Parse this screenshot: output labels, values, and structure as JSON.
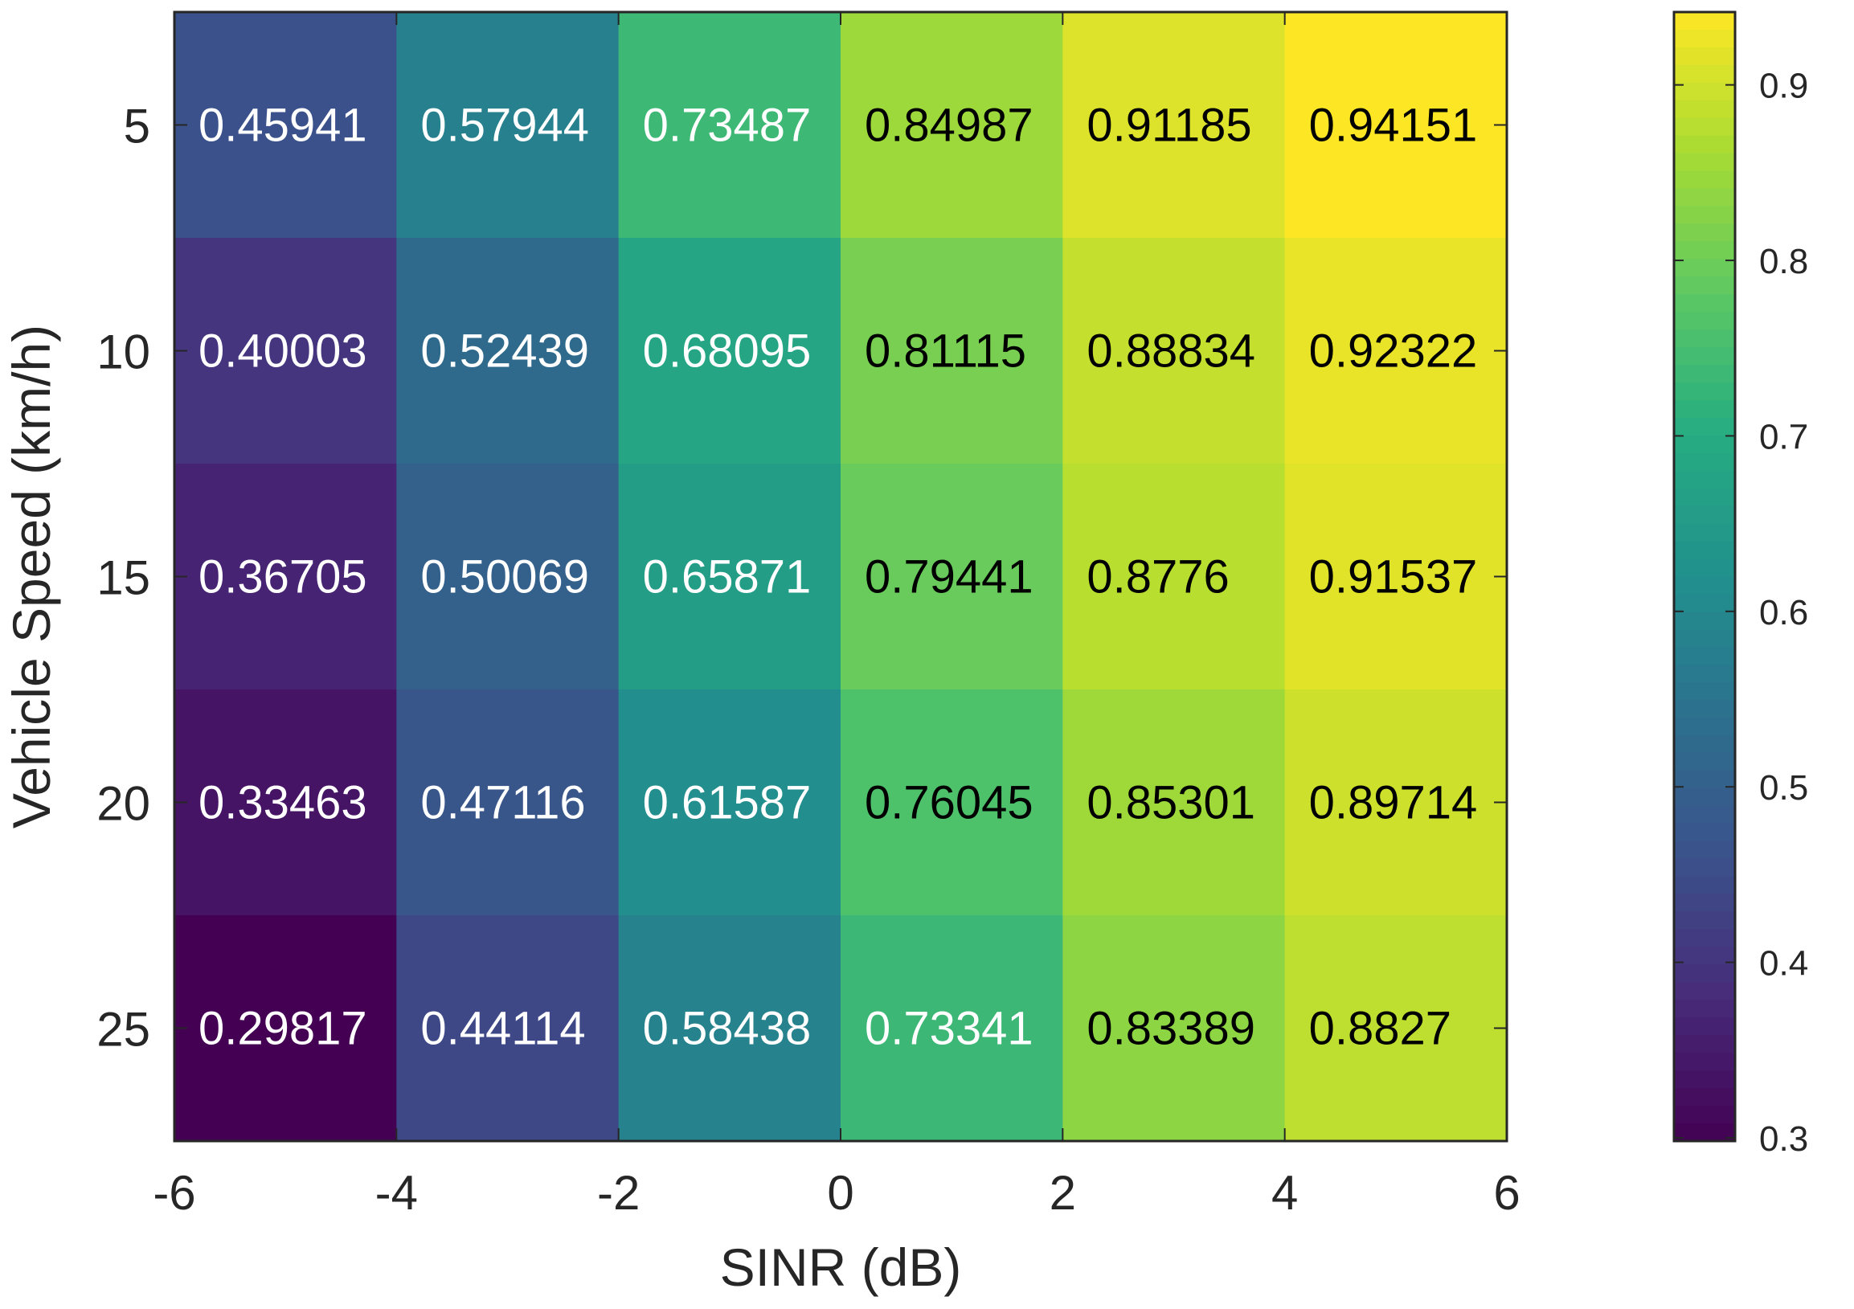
{
  "chart_data": {
    "type": "heatmap",
    "xlabel": "SINR (dB)",
    "ylabel": "Vehicle Speed (km/h)",
    "x_edges": [
      -6,
      -4,
      -2,
      0,
      2,
      4,
      6
    ],
    "x_ticks": [
      -6,
      -4,
      -2,
      0,
      2,
      4,
      6
    ],
    "y_categories": [
      5,
      10,
      15,
      20,
      25
    ],
    "values": [
      [
        "0.45941",
        "0.57944",
        "0.73487",
        "0.84987",
        "0.91185",
        "0.94151"
      ],
      [
        "0.40003",
        "0.52439",
        "0.68095",
        "0.81115",
        "0.88834",
        "0.92322"
      ],
      [
        "0.36705",
        "0.50069",
        "0.65871",
        "0.79441",
        "0.8776",
        "0.91537"
      ],
      [
        "0.33463",
        "0.47116",
        "0.61587",
        "0.76045",
        "0.85301",
        "0.89714"
      ],
      [
        "0.29817",
        "0.44114",
        "0.58438",
        "0.73341",
        "0.83389",
        "0.8827"
      ]
    ],
    "colorbar": {
      "min": 0.29817,
      "max": 0.94151,
      "ticks": [
        0.3,
        0.4,
        0.5,
        0.6,
        0.7,
        0.8,
        0.9
      ],
      "colormap": "parula"
    },
    "grid": false
  }
}
